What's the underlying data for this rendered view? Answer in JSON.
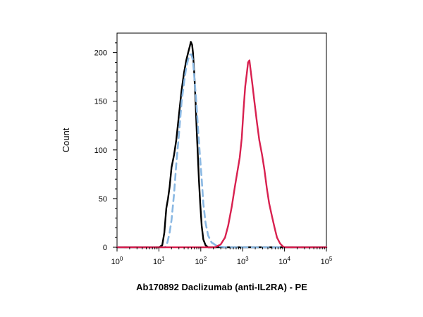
{
  "chart_data": {
    "type": "line",
    "title": "",
    "xlabel": "Ab170892 Daclizumab (anti-IL2RA) - PE",
    "ylabel": "Count",
    "x_scale": "log",
    "xlim": [
      1,
      100000
    ],
    "ylim": [
      0,
      220
    ],
    "x_ticks": [
      {
        "value": 1,
        "base": "10",
        "exp": "0"
      },
      {
        "value": 10,
        "base": "10",
        "exp": "1"
      },
      {
        "value": 100,
        "base": "10",
        "exp": "2"
      },
      {
        "value": 1000,
        "base": "10",
        "exp": "3"
      },
      {
        "value": 10000,
        "base": "10",
        "exp": "4"
      },
      {
        "value": 100000,
        "base": "10",
        "exp": "5"
      }
    ],
    "y_ticks": [
      {
        "value": 0,
        "label": "0"
      },
      {
        "value": 50,
        "label": "50"
      },
      {
        "value": 100,
        "label": "100"
      },
      {
        "value": 150,
        "label": "150"
      },
      {
        "value": 200,
        "label": "200"
      }
    ],
    "grid": false,
    "legend": "none",
    "series": [
      {
        "color": "#000000",
        "style": "solid",
        "points": [
          [
            1,
            0
          ],
          [
            10,
            0
          ],
          [
            12,
            2
          ],
          [
            13.5,
            15
          ],
          [
            15,
            40
          ],
          [
            16.5,
            50
          ],
          [
            18,
            62
          ],
          [
            20,
            82
          ],
          [
            23,
            95
          ],
          [
            26,
            110
          ],
          [
            30,
            135
          ],
          [
            35,
            162
          ],
          [
            40,
            180
          ],
          [
            45,
            192
          ],
          [
            50,
            200
          ],
          [
            55,
            207
          ],
          [
            58,
            211
          ],
          [
            62,
            208
          ],
          [
            65,
            200
          ],
          [
            70,
            178
          ],
          [
            75,
            150
          ],
          [
            80,
            120
          ],
          [
            85,
            95
          ],
          [
            90,
            70
          ],
          [
            97,
            45
          ],
          [
            105,
            22
          ],
          [
            115,
            8
          ],
          [
            130,
            2
          ],
          [
            150,
            0
          ],
          [
            100000,
            0
          ]
        ]
      },
      {
        "color": "#8ab8e3",
        "style": "dashed",
        "points": [
          [
            1,
            0
          ],
          [
            14,
            0
          ],
          [
            16,
            5
          ],
          [
            18,
            15
          ],
          [
            20,
            28
          ],
          [
            23,
            55
          ],
          [
            26,
            85
          ],
          [
            30,
            115
          ],
          [
            35,
            150
          ],
          [
            40,
            170
          ],
          [
            45,
            185
          ],
          [
            50,
            193
          ],
          [
            55,
            198
          ],
          [
            60,
            198
          ],
          [
            65,
            192
          ],
          [
            70,
            175
          ],
          [
            78,
            150
          ],
          [
            85,
            125
          ],
          [
            95,
            95
          ],
          [
            105,
            70
          ],
          [
            115,
            45
          ],
          [
            130,
            25
          ],
          [
            150,
            12
          ],
          [
            180,
            5
          ],
          [
            250,
            1
          ],
          [
            400,
            0
          ],
          [
            100000,
            0
          ]
        ]
      },
      {
        "color": "#d8204f",
        "style": "solid",
        "points": [
          [
            1,
            0
          ],
          [
            220,
            0
          ],
          [
            300,
            3
          ],
          [
            380,
            10
          ],
          [
            450,
            22
          ],
          [
            550,
            42
          ],
          [
            650,
            62
          ],
          [
            750,
            78
          ],
          [
            850,
            92
          ],
          [
            950,
            112
          ],
          [
            1050,
            142
          ],
          [
            1150,
            165
          ],
          [
            1250,
            178
          ],
          [
            1350,
            190
          ],
          [
            1450,
            192
          ],
          [
            1550,
            182
          ],
          [
            1700,
            168
          ],
          [
            1900,
            150
          ],
          [
            2200,
            128
          ],
          [
            2500,
            110
          ],
          [
            2900,
            95
          ],
          [
            3300,
            80
          ],
          [
            3800,
            60
          ],
          [
            4300,
            45
          ],
          [
            5000,
            32
          ],
          [
            5800,
            20
          ],
          [
            6600,
            10
          ],
          [
            7800,
            4
          ],
          [
            9000,
            1
          ],
          [
            10000,
            0
          ],
          [
            100000,
            0
          ]
        ]
      }
    ]
  }
}
